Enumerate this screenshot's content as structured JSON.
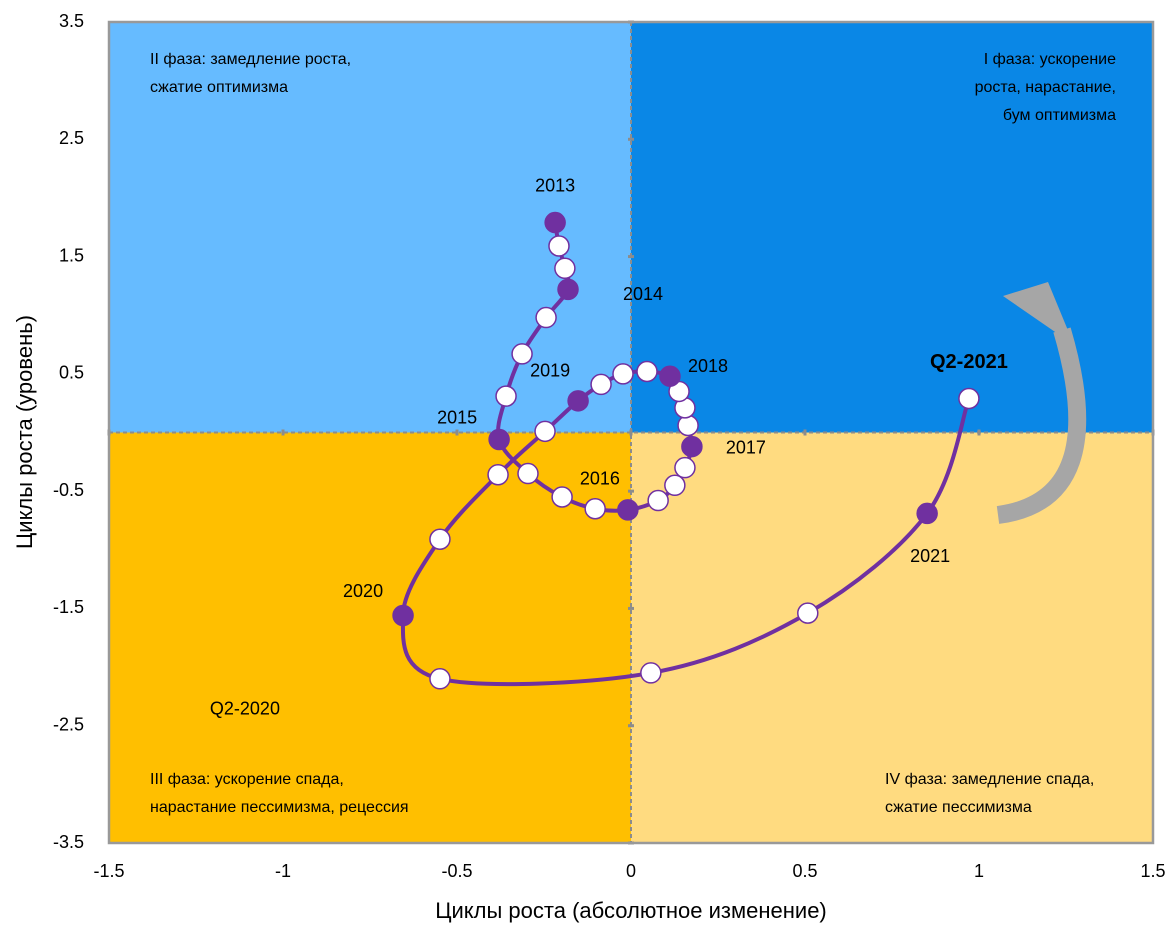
{
  "chart_data": {
    "type": "line",
    "xlabel": "Циклы роста (абсолютное изменение)",
    "ylabel": "Циклы роста (уровень)",
    "xlim": [
      -1.5,
      1.5
    ],
    "ylim": [
      -3.5,
      3.5
    ],
    "xticks": [
      -1.5,
      -1,
      -0.5,
      0,
      0.5,
      1,
      1.5
    ],
    "yticks": [
      3.5,
      2.5,
      1.5,
      0.5,
      -0.5,
      -1.5,
      -2.5,
      -3.5
    ],
    "quadrant_colors": [
      "#0a87e6",
      "#66bbff",
      "#ffbf00",
      "#ffdb80"
    ],
    "quadrant_labels": [
      [
        "I фаза: ускорение",
        "роста, нарастание,",
        "бум оптимизма"
      ],
      [
        "II фаза: замедление роста,",
        "сжатие оптимизма"
      ],
      [
        "III фаза: ускорение спада,",
        "нарастание пессимизма, рецессия"
      ],
      [
        "IV фаза: замедление спада,",
        "сжатие пессимизма"
      ]
    ],
    "series": [
      {
        "color": "#7030a0",
        "x": [
          -0.218,
          -0.207,
          -0.19,
          -0.181,
          -0.244,
          -0.313,
          -0.359,
          -0.379,
          -0.296,
          -0.198,
          -0.103,
          -0.009,
          0.078,
          0.126,
          0.155,
          0.175,
          0.164,
          0.155,
          0.138,
          0.112,
          0.046,
          -0.023,
          -0.086,
          -0.152,
          -0.247,
          -0.382,
          -0.549,
          -0.655,
          -0.549,
          0.057,
          0.508,
          0.851,
          0.971
        ],
        "values": [
          1.79,
          1.59,
          1.4,
          1.22,
          0.98,
          0.67,
          0.31,
          -0.06,
          -0.35,
          -0.55,
          -0.65,
          -0.66,
          -0.58,
          -0.45,
          -0.3,
          -0.12,
          0.06,
          0.21,
          0.35,
          0.48,
          0.52,
          0.5,
          0.41,
          0.27,
          0.01,
          -0.36,
          -0.91,
          -1.56,
          -2.1,
          -2.05,
          -1.54,
          -0.69,
          0.29
        ],
        "marker_colors": [
          "#7030a0",
          "#ffffff",
          "#ffffff",
          "#7030a0",
          "#ffffff",
          "#ffffff",
          "#ffffff",
          "#7030a0",
          "#ffffff",
          "#ffffff",
          "#ffffff",
          "#7030a0",
          "#ffffff",
          "#ffffff",
          "#ffffff",
          "#7030a0",
          "#ffffff",
          "#ffffff",
          "#ffffff",
          "#7030a0",
          "#ffffff",
          "#ffffff",
          "#ffffff",
          "#7030a0",
          "#ffffff",
          "#ffffff",
          "#ffffff",
          "#7030a0",
          "#ffffff",
          "#ffffff",
          "#ffffff",
          "#7030a0",
          "#ffffff"
        ],
        "point_labels": [
          "2013",
          null,
          null,
          "2014",
          null,
          null,
          null,
          "2015",
          null,
          null,
          null,
          "2016",
          null,
          null,
          null,
          "2017",
          null,
          null,
          null,
          "2018",
          null,
          null,
          null,
          "2019",
          null,
          null,
          null,
          "2020",
          "Q2-2020",
          null,
          null,
          "2021",
          "Q2-2021"
        ]
      }
    ]
  }
}
